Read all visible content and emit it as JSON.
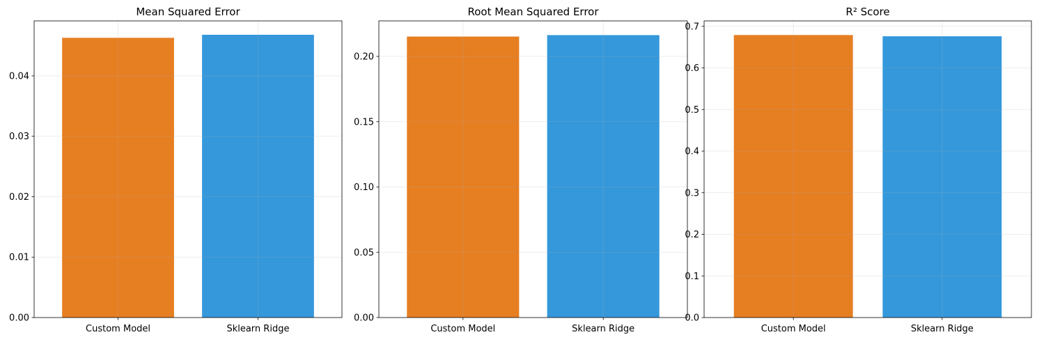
{
  "chart_data": [
    {
      "type": "bar",
      "title": "Mean Squared Error",
      "xlabel": "",
      "ylabel": "",
      "categories": [
        "Custom Model",
        "Sklearn Ridge"
      ],
      "values": [
        0.0463,
        0.0468
      ],
      "colors": [
        "#e67e22",
        "#3498db"
      ],
      "ylim": [
        0,
        0.0491
      ],
      "yticks": [
        0.0,
        0.01,
        0.02,
        0.03,
        0.04
      ],
      "ytick_labels": [
        "0.00",
        "0.01",
        "0.02",
        "0.03",
        "0.04"
      ],
      "grid": true
    },
    {
      "type": "bar",
      "title": "Root Mean Squared Error",
      "xlabel": "",
      "ylabel": "",
      "categories": [
        "Custom Model",
        "Sklearn Ridge"
      ],
      "values": [
        0.2152,
        0.2163
      ],
      "colors": [
        "#e67e22",
        "#3498db"
      ],
      "ylim": [
        0,
        0.2272
      ],
      "yticks": [
        0.0,
        0.05,
        0.1,
        0.15,
        0.2
      ],
      "ytick_labels": [
        "0.00",
        "0.05",
        "0.10",
        "0.15",
        "0.20"
      ],
      "grid": true
    },
    {
      "type": "bar",
      "title": "R² Score",
      "xlabel": "",
      "ylabel": "",
      "categories": [
        "Custom Model",
        "Sklearn Ridge"
      ],
      "values": [
        0.679,
        0.676
      ],
      "colors": [
        "#e67e22",
        "#3498db"
      ],
      "ylim": [
        0,
        0.713
      ],
      "yticks": [
        0.0,
        0.1,
        0.2,
        0.3,
        0.4,
        0.5,
        0.6,
        0.7
      ],
      "ytick_labels": [
        "0.0",
        "0.1",
        "0.2",
        "0.3",
        "0.4",
        "0.5",
        "0.6",
        "0.7"
      ],
      "grid": true
    }
  ]
}
